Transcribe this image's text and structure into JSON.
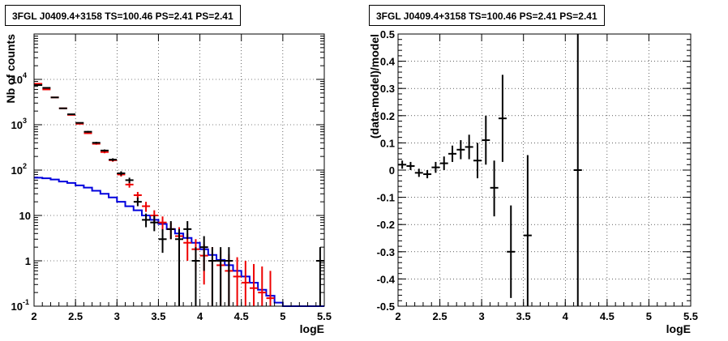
{
  "chart_data": [
    {
      "type": "histogram",
      "title": "3FGL J0409.4+3158 TS=100.46 PS=2.41 PS=2.41",
      "xlabel": "logE",
      "ylabel": "Nb of counts",
      "log_y": true,
      "grid": true,
      "xlim": [
        2,
        5.5
      ],
      "ylim": [
        0.1,
        100000
      ],
      "x_ticks": [
        "2",
        "2.5",
        "3",
        "3.5",
        "4",
        "4.5",
        "5",
        "5.5"
      ],
      "y_ticks": [
        {
          "v": 0.1,
          "label": "10",
          "exp": "-1"
        },
        {
          "v": 1,
          "label": "1",
          "exp": ""
        },
        {
          "v": 10,
          "label": "10",
          "exp": ""
        },
        {
          "v": 100,
          "label": "10",
          "exp": "2"
        },
        {
          "v": 1000,
          "label": "10",
          "exp": "3"
        },
        {
          "v": 10000,
          "label": "10",
          "exp": "4"
        }
      ],
      "series": [
        {
          "role": "data",
          "color": "#000000",
          "points": [
            {
              "x": 2.05,
              "y": 7500,
              "lo": 7400,
              "hi": 7600
            },
            {
              "x": 2.15,
              "y": 6500,
              "lo": 6400,
              "hi": 6600
            },
            {
              "x": 2.25,
              "y": 4000,
              "lo": 3950,
              "hi": 4050
            },
            {
              "x": 2.35,
              "y": 2300,
              "lo": 2250,
              "hi": 2350
            },
            {
              "x": 2.45,
              "y": 1700,
              "lo": 1650,
              "hi": 1750
            },
            {
              "x": 2.55,
              "y": 1100,
              "lo": 1070,
              "hi": 1130
            },
            {
              "x": 2.65,
              "y": 700,
              "lo": 670,
              "hi": 730
            },
            {
              "x": 2.75,
              "y": 400,
              "lo": 380,
              "hi": 420
            },
            {
              "x": 2.85,
              "y": 270,
              "lo": 255,
              "hi": 285
            },
            {
              "x": 2.95,
              "y": 170,
              "lo": 158,
              "hi": 182
            },
            {
              "x": 3.05,
              "y": 85,
              "lo": 76,
              "hi": 94
            },
            {
              "x": 3.15,
              "y": 60,
              "lo": 52,
              "hi": 68
            },
            {
              "x": 3.25,
              "y": 20,
              "lo": 16,
              "hi": 25
            },
            {
              "x": 3.35,
              "y": 8,
              "lo": 5.5,
              "hi": 11
            },
            {
              "x": 3.45,
              "y": 7,
              "lo": 4.5,
              "hi": 10
            },
            {
              "x": 3.55,
              "y": 3,
              "lo": 1.5,
              "hi": 5
            },
            {
              "x": 3.65,
              "y": 5,
              "lo": 3,
              "hi": 7.5
            },
            {
              "x": 3.75,
              "y": 3,
              "lo": 0.1,
              "hi": 5
            },
            {
              "x": 3.85,
              "y": 5,
              "lo": 3,
              "hi": 7.5
            },
            {
              "x": 3.95,
              "y": 1,
              "lo": 0.1,
              "hi": 2
            },
            {
              "x": 4.05,
              "y": 2,
              "lo": 0.6,
              "hi": 3.5
            },
            {
              "x": 4.15,
              "y": 1,
              "lo": 0.1,
              "hi": 2
            },
            {
              "x": 4.25,
              "y": 1,
              "lo": 0.1,
              "hi": 2
            },
            {
              "x": 4.35,
              "y": 1,
              "lo": 0.1,
              "hi": 2
            },
            {
              "x": 5.45,
              "y": 1,
              "lo": 0.1,
              "hi": 2
            }
          ]
        },
        {
          "role": "model",
          "color": "#ee0000",
          "points": [
            {
              "x": 2.05,
              "y": 8000,
              "lo": 7900,
              "hi": 8100
            },
            {
              "x": 2.15,
              "y": 6000,
              "lo": 5900,
              "hi": 6100
            },
            {
              "x": 2.25,
              "y": 4000,
              "lo": 3950,
              "hi": 4050
            },
            {
              "x": 2.35,
              "y": 2300,
              "lo": 2250,
              "hi": 2350
            },
            {
              "x": 2.45,
              "y": 1650,
              "lo": 1600,
              "hi": 1700
            },
            {
              "x": 2.55,
              "y": 1050,
              "lo": 1020,
              "hi": 1080
            },
            {
              "x": 2.65,
              "y": 650,
              "lo": 625,
              "hi": 675
            },
            {
              "x": 2.75,
              "y": 380,
              "lo": 362,
              "hi": 398
            },
            {
              "x": 2.85,
              "y": 250,
              "lo": 235,
              "hi": 265
            },
            {
              "x": 2.95,
              "y": 165,
              "lo": 153,
              "hi": 177
            },
            {
              "x": 3.05,
              "y": 80,
              "lo": 72,
              "hi": 88
            },
            {
              "x": 3.15,
              "y": 48,
              "lo": 41,
              "hi": 55
            },
            {
              "x": 3.25,
              "y": 28,
              "lo": 23,
              "hi": 33
            },
            {
              "x": 3.35,
              "y": 16,
              "lo": 12,
              "hi": 20
            },
            {
              "x": 3.45,
              "y": 10,
              "lo": 7,
              "hi": 13
            },
            {
              "x": 3.55,
              "y": 7,
              "lo": 4.5,
              "hi": 9.5
            },
            {
              "x": 3.65,
              "y": 5,
              "lo": 3,
              "hi": 7
            },
            {
              "x": 3.75,
              "y": 3.5,
              "lo": 1.8,
              "hi": 5.5
            },
            {
              "x": 3.85,
              "y": 2.5,
              "lo": 1,
              "hi": 4
            },
            {
              "x": 3.95,
              "y": 1.8,
              "lo": 0.6,
              "hi": 3
            },
            {
              "x": 4.05,
              "y": 1.3,
              "lo": 0.3,
              "hi": 2.3
            },
            {
              "x": 4.15,
              "y": 1,
              "lo": 0.1,
              "hi": 2
            },
            {
              "x": 4.25,
              "y": 0.8,
              "lo": 0.1,
              "hi": 1.7
            },
            {
              "x": 4.35,
              "y": 0.6,
              "lo": 0.1,
              "hi": 1.4
            },
            {
              "x": 4.45,
              "y": 0.45,
              "lo": 0.1,
              "hi": 1.2
            },
            {
              "x": 4.55,
              "y": 0.33,
              "lo": 0.1,
              "hi": 1
            },
            {
              "x": 4.65,
              "y": 0.25,
              "lo": 0.1,
              "hi": 0.85
            },
            {
              "x": 4.75,
              "y": 0.2,
              "lo": 0.1,
              "hi": 0.75
            },
            {
              "x": 4.85,
              "y": 0.15,
              "lo": 0.1,
              "hi": 0.6
            }
          ]
        },
        {
          "role": "background",
          "color": "#0000dd",
          "style": "step",
          "edges": [
            2.0,
            2.1,
            2.2,
            2.3,
            2.4,
            2.5,
            2.6,
            2.7,
            2.8,
            2.9,
            3.0,
            3.1,
            3.2,
            3.3,
            3.4,
            3.5,
            3.6,
            3.7,
            3.8,
            3.9,
            4.0,
            4.1,
            4.2,
            4.3,
            4.4,
            4.5,
            4.6,
            4.7,
            4.8,
            4.9,
            5.0,
            5.1,
            5.2,
            5.3,
            5.4,
            5.5
          ],
          "values": [
            68,
            66,
            62,
            56,
            52,
            46,
            41,
            35,
            30,
            25,
            20,
            16,
            13,
            10,
            8,
            6.5,
            5,
            4,
            3.2,
            2.5,
            1.8,
            1.35,
            1.05,
            0.8,
            0.6,
            0.45,
            0.33,
            0.23,
            0.17,
            0.12,
            0.1,
            0.1,
            0.1,
            0.1,
            0.1
          ]
        }
      ]
    },
    {
      "type": "scatter",
      "title": "3FGL J0409.4+3158 TS=100.46 PS=2.41 PS=2.41",
      "xlabel": "logE",
      "ylabel": "(data-model)/model",
      "grid": true,
      "xlim": [
        2,
        5.5
      ],
      "ylim": [
        -0.5,
        0.5
      ],
      "x_ticks": [
        "2",
        "2.5",
        "3",
        "3.5",
        "4",
        "4.5",
        "5",
        "5.5"
      ],
      "y_ticks": [
        "-0.5",
        "-0.4",
        "-0.3",
        "-0.2",
        "-0.1",
        "0",
        "0.1",
        "0.2",
        "0.3",
        "0.4",
        "0.5"
      ],
      "series": [
        {
          "role": "residual",
          "color": "#000000",
          "points": [
            {
              "x": 2.05,
              "y": 0.02,
              "lo": 0.005,
              "hi": 0.035
            },
            {
              "x": 2.15,
              "y": 0.015,
              "lo": 0.0,
              "hi": 0.03
            },
            {
              "x": 2.25,
              "y": -0.01,
              "lo": -0.025,
              "hi": 0.005
            },
            {
              "x": 2.35,
              "y": -0.015,
              "lo": -0.03,
              "hi": 0.0
            },
            {
              "x": 2.45,
              "y": 0.01,
              "lo": -0.01,
              "hi": 0.03
            },
            {
              "x": 2.55,
              "y": 0.025,
              "lo": 0.0,
              "hi": 0.05
            },
            {
              "x": 2.65,
              "y": 0.06,
              "lo": 0.03,
              "hi": 0.09
            },
            {
              "x": 2.75,
              "y": 0.075,
              "lo": 0.04,
              "hi": 0.11
            },
            {
              "x": 2.85,
              "y": 0.085,
              "lo": 0.04,
              "hi": 0.13
            },
            {
              "x": 2.95,
              "y": 0.035,
              "lo": -0.03,
              "hi": 0.1
            },
            {
              "x": 3.05,
              "y": 0.11,
              "lo": 0.02,
              "hi": 0.2
            },
            {
              "x": 3.15,
              "y": -0.065,
              "lo": -0.17,
              "hi": 0.035
            },
            {
              "x": 3.25,
              "y": 0.19,
              "lo": 0.03,
              "hi": 0.35
            },
            {
              "x": 3.35,
              "y": -0.3,
              "lo": -0.47,
              "hi": -0.13
            },
            {
              "x": 3.55,
              "y": -0.24,
              "lo": -0.5,
              "hi": 0.055
            },
            {
              "x": 4.15,
              "y": 0.0,
              "lo": -0.5,
              "hi": 0.5
            }
          ]
        }
      ]
    }
  ]
}
